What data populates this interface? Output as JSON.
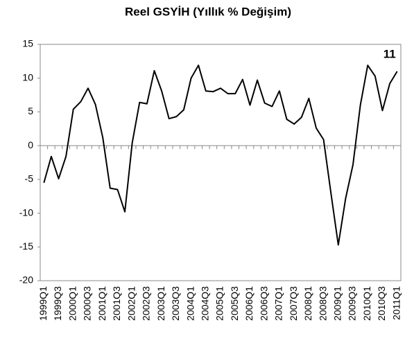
{
  "chart_data": {
    "type": "line",
    "title": "Reel GSYİH (Yıllık % Değişim)",
    "categories": [
      "1999Q1",
      null,
      "1999Q3",
      null,
      "2000Q1",
      null,
      "2000Q3",
      null,
      "2001Q1",
      null,
      "2001Q3",
      null,
      "2002Q1",
      null,
      "2002Q3",
      null,
      "2003Q1",
      null,
      "2003Q3",
      null,
      "2004Q1",
      null,
      "2004Q3",
      null,
      "2005Q1",
      null,
      "2005Q3",
      null,
      "2006Q1",
      null,
      "2006Q3",
      null,
      "2007Q1",
      null,
      "2007Q3",
      null,
      "2008Q1",
      null,
      "2008Q3",
      null,
      "2009Q1",
      null,
      "2009Q3",
      null,
      "2010Q1",
      null,
      "2010Q3",
      null,
      "2011Q1"
    ],
    "values": [
      -5.5,
      -1.6,
      -4.9,
      -1.6,
      5.4,
      6.5,
      8.5,
      6.1,
      1.2,
      -6.3,
      -6.5,
      -9.8,
      0.4,
      6.4,
      6.2,
      11.1,
      8.1,
      4.0,
      4.3,
      5.3,
      10.0,
      11.9,
      8.1,
      8.0,
      8.5,
      7.7,
      7.7,
      9.8,
      6.0,
      9.7,
      6.3,
      5.8,
      8.1,
      3.9,
      3.2,
      4.2,
      7.0,
      2.6,
      0.9,
      -7.0,
      -14.7,
      -7.8,
      -2.8,
      6.0,
      11.9,
      10.3,
      5.2,
      9.2,
      11
    ],
    "color": "#000000",
    "ylim": [
      -20,
      15
    ],
    "yticks": [
      -20,
      -15,
      -10,
      -5,
      0,
      5,
      10,
      15
    ],
    "grid": false
  }
}
